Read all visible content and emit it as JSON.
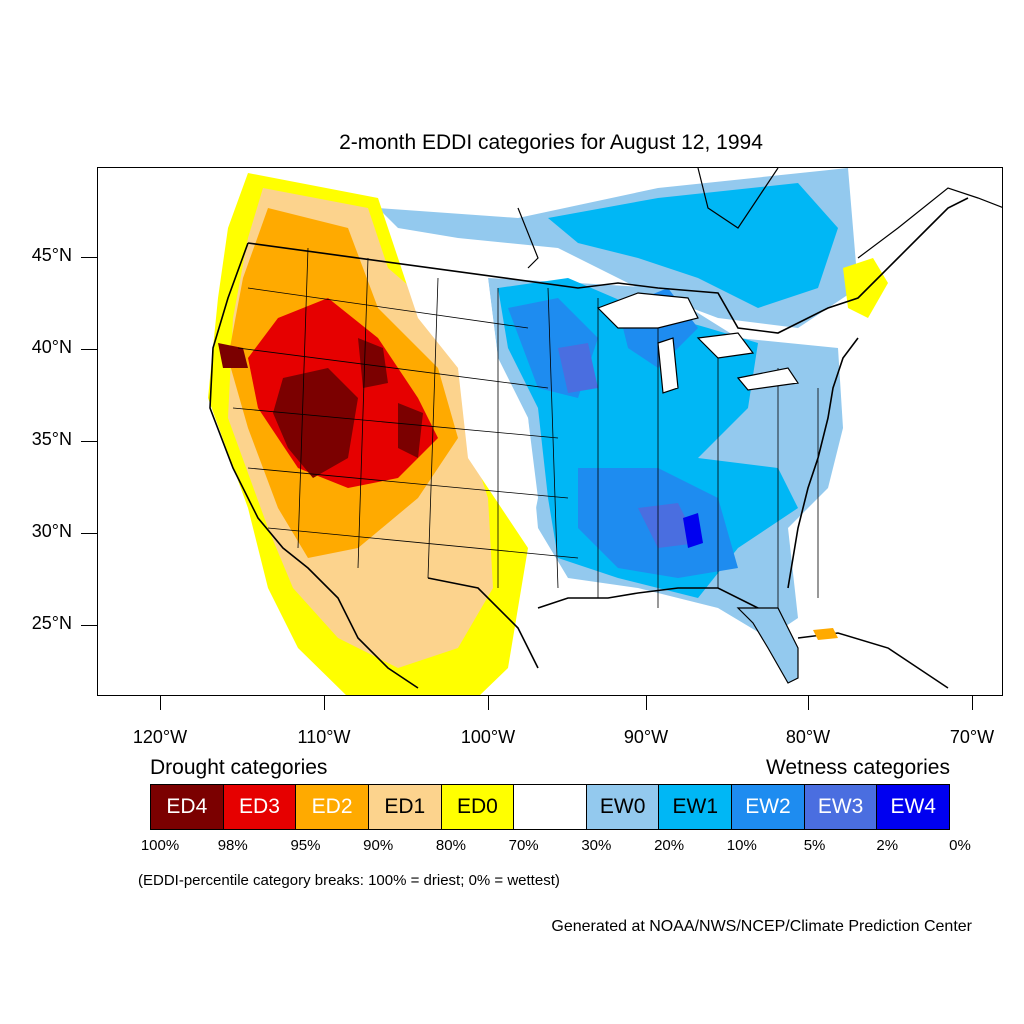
{
  "title": "2-month EDDI categories for August 12, 1994",
  "lat_labels": [
    "45°N",
    "40°N",
    "35°N",
    "30°N",
    "25°N"
  ],
  "lon_labels": [
    "120°W",
    "110°W",
    "100°W",
    "90°W",
    "80°W",
    "70°W"
  ],
  "legend": {
    "drought_heading": "Drought categories",
    "wetness_heading": "Wetness categories",
    "categories": [
      {
        "label": "ED4",
        "color": "#7b0000",
        "text_color": "#ffffff"
      },
      {
        "label": "ED3",
        "color": "#e60000",
        "text_color": "#ffffff"
      },
      {
        "label": "ED2",
        "color": "#ffaa00",
        "text_color": "#ffffff"
      },
      {
        "label": "ED1",
        "color": "#fcd38d",
        "text_color": "#000000"
      },
      {
        "label": "ED0",
        "color": "#ffff00",
        "text_color": "#000000"
      },
      {
        "label": "",
        "color": "#ffffff",
        "text_color": "#000000"
      },
      {
        "label": "EW0",
        "color": "#93c9ee",
        "text_color": "#000000"
      },
      {
        "label": "EW1",
        "color": "#00b7f5",
        "text_color": "#000000"
      },
      {
        "label": "EW2",
        "color": "#1e8cf0",
        "text_color": "#ffffff"
      },
      {
        "label": "EW3",
        "color": "#4a6ee0",
        "text_color": "#ffffff"
      },
      {
        "label": "EW4",
        "color": "#0000f0",
        "text_color": "#ffffff"
      }
    ],
    "percentiles": [
      "100%",
      "98%",
      "95%",
      "90%",
      "80%",
      "70%",
      "30%",
      "20%",
      "10%",
      "5%",
      "2%",
      "0%"
    ],
    "note": "(EDDI-percentile category breaks: 100% = driest; 0% = wettest)"
  },
  "credit": "Generated at NOAA/NWS/NCEP/Climate Prediction Center"
}
